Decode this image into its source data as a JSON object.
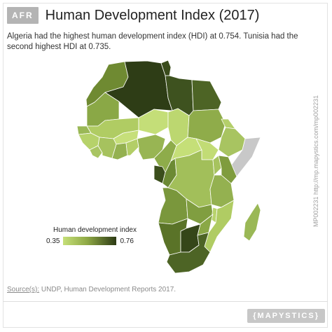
{
  "header": {
    "badge": "AFR",
    "title": "Human Development Index (2017)",
    "subtitle": "Algeria had the highest human development index (HDI) at 0.754. Tunisia had the second highest HDI at 0.735."
  },
  "legend": {
    "title": "Human development index",
    "min": "0.35",
    "max": "0.76",
    "colors": [
      "#c5df78",
      "#8fa946",
      "#2c3a14"
    ]
  },
  "map": {
    "region": "Africa",
    "no_data_color": "#c8c8c8",
    "highlighted": [
      {
        "country": "Algeria",
        "hdi": 0.754
      },
      {
        "country": "Tunisia",
        "hdi": 0.735
      }
    ]
  },
  "side_link": "MP002231 http://mp.mapystics.com/mp002231",
  "source": {
    "label": "Source(s):",
    "text": "UNDP, Human Development Reports 2017."
  },
  "brand": "{MAPYSTICS}"
}
